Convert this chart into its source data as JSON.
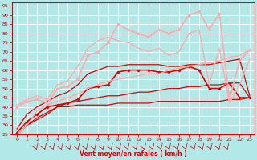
{
  "title": "",
  "xlabel": "Vent moyen/en rafales ( km/h )",
  "bg_color": "#b3e8e8",
  "grid_color": "#ffffff",
  "xlim": [
    -0.5,
    23.5
  ],
  "ylim": [
    25,
    97
  ],
  "yticks": [
    25,
    30,
    35,
    40,
    45,
    50,
    55,
    60,
    65,
    70,
    75,
    80,
    85,
    90,
    95
  ],
  "xticks": [
    0,
    1,
    2,
    3,
    4,
    5,
    6,
    7,
    8,
    9,
    10,
    11,
    12,
    13,
    14,
    15,
    16,
    17,
    18,
    19,
    20,
    21,
    22,
    23
  ],
  "lines": [
    {
      "x": [
        0,
        1,
        2,
        3,
        4,
        5,
        6,
        7,
        8,
        9,
        10,
        11,
        12,
        13,
        14,
        15,
        16,
        17,
        18,
        19,
        20,
        21,
        22,
        23
      ],
      "y": [
        25,
        30,
        33,
        36,
        40,
        40,
        41,
        41,
        41,
        41,
        42,
        42,
        42,
        42,
        43,
        43,
        43,
        43,
        43,
        43,
        43,
        44,
        44,
        45
      ],
      "color": "#dd0000",
      "lw": 0.9,
      "marker": null
    },
    {
      "x": [
        0,
        1,
        2,
        3,
        4,
        5,
        6,
        7,
        8,
        9,
        10,
        11,
        12,
        13,
        14,
        15,
        16,
        17,
        18,
        19,
        20,
        21,
        22,
        23
      ],
      "y": [
        25,
        30,
        34,
        37,
        40,
        42,
        43,
        44,
        45,
        46,
        46,
        47,
        48,
        48,
        49,
        50,
        50,
        51,
        51,
        52,
        52,
        53,
        53,
        45
      ],
      "color": "#dd0000",
      "lw": 0.9,
      "marker": null
    },
    {
      "x": [
        0,
        1,
        2,
        3,
        4,
        5,
        6,
        7,
        8,
        9,
        10,
        11,
        12,
        13,
        14,
        15,
        16,
        17,
        18,
        19,
        20,
        21,
        22,
        23
      ],
      "y": [
        26,
        32,
        36,
        40,
        41,
        42,
        44,
        50,
        51,
        52,
        59,
        60,
        60,
        60,
        59,
        59,
        60,
        62,
        60,
        50,
        50,
        53,
        45,
        45
      ],
      "color": "#dd0000",
      "lw": 1.2,
      "marker": "D",
      "ms": 1.8
    },
    {
      "x": [
        0,
        1,
        2,
        3,
        4,
        5,
        6,
        7,
        8,
        9,
        10,
        11,
        12,
        13,
        14,
        15,
        16,
        17,
        18,
        19,
        20,
        21,
        22,
        23
      ],
      "y": [
        28,
        36,
        40,
        43,
        46,
        48,
        52,
        58,
        60,
        62,
        62,
        63,
        63,
        63,
        63,
        62,
        62,
        63,
        63,
        63,
        64,
        65,
        66,
        46
      ],
      "color": "#dd0000",
      "lw": 0.9,
      "marker": null
    },
    {
      "x": [
        0,
        1,
        2,
        3,
        4,
        5,
        6,
        7,
        8,
        9,
        10,
        11,
        12,
        13,
        14,
        15,
        16,
        17,
        18,
        19,
        20,
        21,
        22,
        23
      ],
      "y": [
        40,
        43,
        44,
        42,
        50,
        51,
        55,
        68,
        70,
        75,
        85,
        82,
        80,
        78,
        82,
        80,
        82,
        90,
        92,
        82,
        91,
        44,
        65,
        71
      ],
      "color": "#ffaaaa",
      "lw": 1.2,
      "marker": "D",
      "ms": 1.8
    },
    {
      "x": [
        0,
        1,
        2,
        3,
        4,
        5,
        6,
        7,
        8,
        9,
        10,
        11,
        12,
        13,
        14,
        15,
        16,
        17,
        18,
        19,
        20,
        21,
        22,
        23
      ],
      "y": [
        25,
        30,
        38,
        41,
        43,
        45,
        47,
        50,
        52,
        54,
        55,
        56,
        57,
        58,
        58,
        60,
        61,
        62,
        63,
        64,
        65,
        67,
        68,
        71
      ],
      "color": "#ffaaaa",
      "lw": 1.0,
      "marker": null
    },
    {
      "x": [
        0,
        1,
        2,
        3,
        4,
        5,
        6,
        7,
        8,
        9,
        10,
        11,
        12,
        13,
        14,
        15,
        16,
        17,
        18,
        19,
        20,
        21,
        22,
        23
      ],
      "y": [
        41,
        44,
        46,
        44,
        52,
        54,
        62,
        72,
        76,
        78,
        76,
        75,
        72,
        70,
        72,
        68,
        70,
        80,
        82,
        52,
        72,
        42,
        52,
        66
      ],
      "color": "#ffaaaa",
      "lw": 1.0,
      "marker": null
    }
  ],
  "arrow_color": "#dd0000",
  "xlabel_color": "#dd0000",
  "tick_color": "#dd0000",
  "axis_color": "#dd0000"
}
